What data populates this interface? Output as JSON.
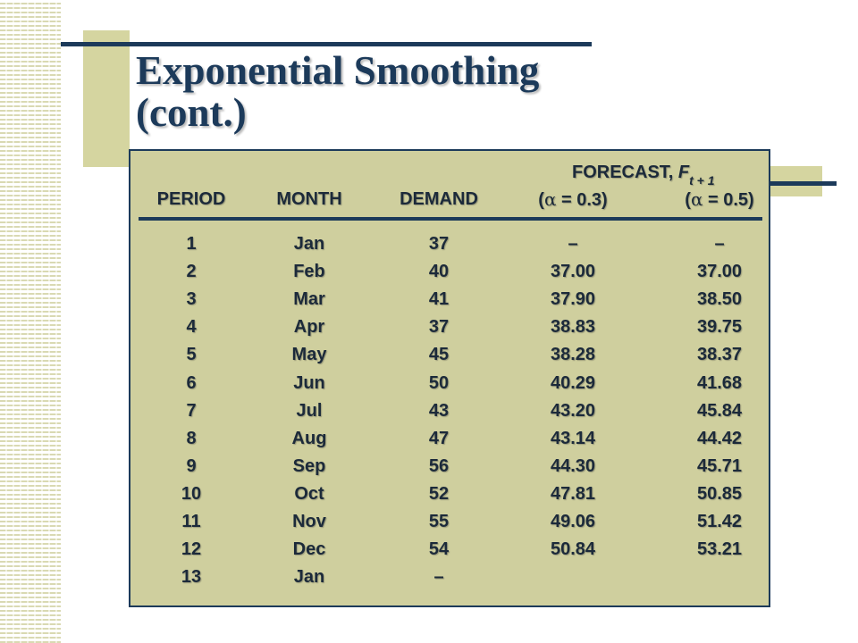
{
  "slide": {
    "title_line1": "Exponential Smoothing",
    "title_line2": "(cont.)"
  },
  "table": {
    "forecast_label": "FORECAST, ",
    "forecast_var": "F",
    "forecast_sub": "t + 1",
    "headers": {
      "period": "PERIOD",
      "month": "MONTH",
      "demand": "DEMAND",
      "alpha_03": "= 0.3)",
      "alpha_05": "= 0.5)"
    },
    "rows": [
      {
        "period": "1",
        "month": "Jan",
        "demand": "37",
        "f03": "–",
        "f05": "–"
      },
      {
        "period": "2",
        "month": "Feb",
        "demand": "40",
        "f03": "37.00",
        "f05": "37.00"
      },
      {
        "period": "3",
        "month": "Mar",
        "demand": "41",
        "f03": "37.90",
        "f05": "38.50"
      },
      {
        "period": "4",
        "month": "Apr",
        "demand": "37",
        "f03": "38.83",
        "f05": "39.75"
      },
      {
        "period": "5",
        "month": "May",
        "demand": "45",
        "f03": "38.28",
        "f05": "38.37"
      },
      {
        "period": "6",
        "month": "Jun",
        "demand": "50",
        "f03": "40.29",
        "f05": "41.68"
      },
      {
        "period": "7",
        "month": "Jul",
        "demand": "43",
        "f03": "43.20",
        "f05": "45.84"
      },
      {
        "period": "8",
        "month": "Aug",
        "demand": "47",
        "f03": "43.14",
        "f05": "44.42"
      },
      {
        "period": "9",
        "month": "Sep",
        "demand": "56",
        "f03": "44.30",
        "f05": "45.71"
      },
      {
        "period": "10",
        "month": "Oct",
        "demand": "52",
        "f03": "47.81",
        "f05": "50.85"
      },
      {
        "period": "11",
        "month": "Nov",
        "demand": "55",
        "f03": "49.06",
        "f05": "51.42"
      },
      {
        "period": "12",
        "month": "Dec",
        "demand": "54",
        "f03": "50.84",
        "f05": "53.21"
      },
      {
        "period": "13",
        "month": "Jan",
        "demand": "–",
        "f03": "",
        "f05": ""
      }
    ]
  },
  "colors": {
    "title": "#1c3a5a",
    "table_bg": "#cfcf9e",
    "accent_tan": "#d5d5a0",
    "rule": "#1c3a5a"
  }
}
